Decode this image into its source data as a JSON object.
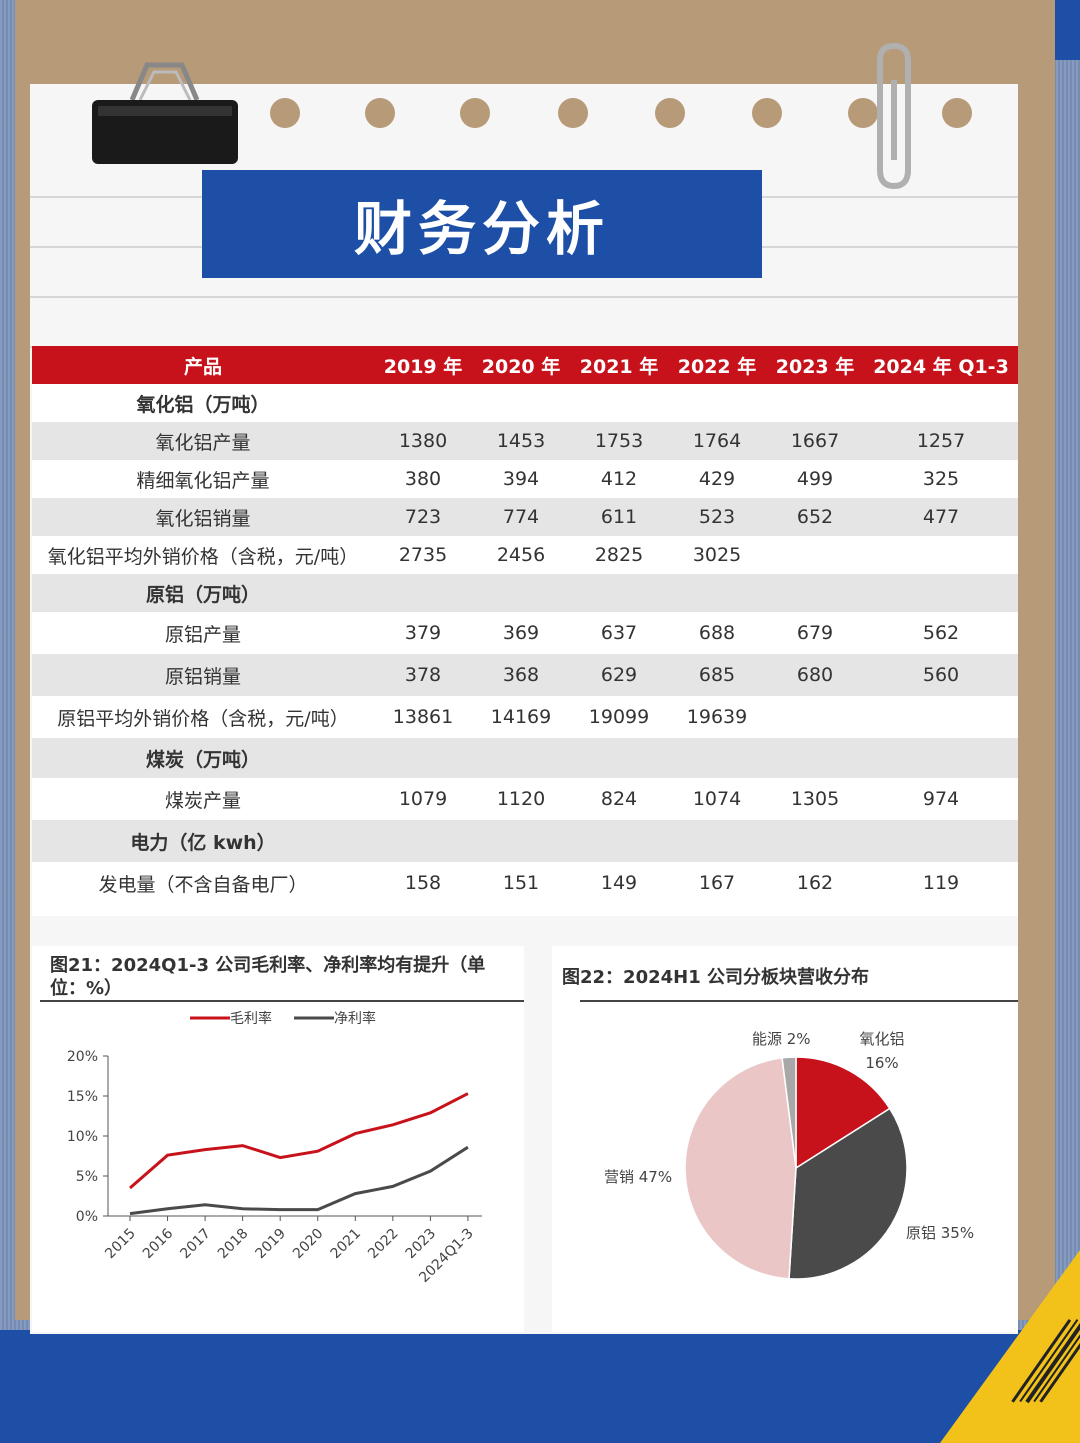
{
  "banner": {
    "title": "财务分析"
  },
  "table": {
    "headers": [
      "产品",
      "2019 年",
      "2020 年",
      "2021 年",
      "2022 年",
      "2023 年",
      "2024 年 Q1-3"
    ],
    "rows": [
      {
        "type": "section",
        "label": "氧化铝（万吨）",
        "values": [
          "",
          "",
          "",
          "",
          "",
          ""
        ]
      },
      {
        "type": "data",
        "label": "氧化铝产量",
        "values": [
          "1380",
          "1453",
          "1753",
          "1764",
          "1667",
          "1257"
        ]
      },
      {
        "type": "data",
        "label": "精细氧化铝产量",
        "values": [
          "380",
          "394",
          "412",
          "429",
          "499",
          "325"
        ]
      },
      {
        "type": "data",
        "label": "氧化铝销量",
        "values": [
          "723",
          "774",
          "611",
          "523",
          "652",
          "477"
        ]
      },
      {
        "type": "data",
        "label": "氧化铝平均外销价格（含税，元/吨）",
        "values": [
          "2735",
          "2456",
          "2825",
          "3025",
          "",
          ""
        ]
      },
      {
        "type": "section",
        "label": "原铝（万吨）",
        "values": [
          "",
          "",
          "",
          "",
          "",
          ""
        ]
      },
      {
        "type": "data",
        "label": "原铝产量",
        "values": [
          "379",
          "369",
          "637",
          "688",
          "679",
          "562"
        ]
      },
      {
        "type": "data",
        "label": "原铝销量",
        "values": [
          "378",
          "368",
          "629",
          "685",
          "680",
          "560"
        ]
      },
      {
        "type": "data",
        "label": "原铝平均外销价格（含税，元/吨）",
        "values": [
          "13861",
          "14169",
          "19099",
          "19639",
          "",
          ""
        ]
      },
      {
        "type": "section",
        "label": "煤炭（万吨）",
        "values": [
          "",
          "",
          "",
          "",
          "",
          ""
        ]
      },
      {
        "type": "data",
        "label": "煤炭产量",
        "values": [
          "1079",
          "1120",
          "824",
          "1074",
          "1305",
          "974"
        ]
      },
      {
        "type": "section",
        "label": "电力（亿 kwh）",
        "values": [
          "",
          "",
          "",
          "",
          "",
          ""
        ]
      },
      {
        "type": "data",
        "label": "发电量（不含自备电厂）",
        "values": [
          "158",
          "151",
          "149",
          "167",
          "162",
          "119"
        ]
      }
    ]
  },
  "fig21": {
    "title": "图21：2024Q1-3 公司毛利率、净利率均有提升（单位：%）"
  },
  "fig22": {
    "title": "图22：2024H1 公司分板块营收分布"
  },
  "chart_data": [
    {
      "type": "line",
      "categories": [
        "2015",
        "2016",
        "2017",
        "2018",
        "2019",
        "2020",
        "2021",
        "2022",
        "2023",
        "2024Q1-3"
      ],
      "series": [
        {
          "name": "毛利率",
          "color": "#c8121b",
          "values": [
            3.5,
            7.6,
            8.3,
            8.8,
            7.3,
            8.1,
            10.3,
            11.4,
            12.9,
            15.3
          ]
        },
        {
          "name": "净利率",
          "color": "#4a4a4a",
          "values": [
            0.3,
            0.9,
            1.4,
            0.9,
            0.8,
            0.8,
            2.8,
            3.7,
            5.6,
            8.6
          ]
        }
      ],
      "yticks": [
        "20%",
        "15%",
        "10%",
        "5%",
        "0%"
      ],
      "ylim": [
        0,
        20
      ],
      "legend": "top"
    },
    {
      "type": "pie",
      "slices": [
        {
          "name": "氧化铝",
          "label_name": "氧化铝",
          "label_value": "16%",
          "value": 16,
          "color": "#c8121b"
        },
        {
          "name": "原铝",
          "label_name": "原铝",
          "label_value": "35%",
          "value": 35,
          "color": "#4a4a4a"
        },
        {
          "name": "营销",
          "label_name": "营销",
          "label_value": "47%",
          "value": 47,
          "color": "#ebc6c7"
        },
        {
          "name": "能源",
          "label_name": "能源",
          "label_value": "2%",
          "value": 2,
          "color": "#a8a8a8"
        }
      ]
    }
  ]
}
